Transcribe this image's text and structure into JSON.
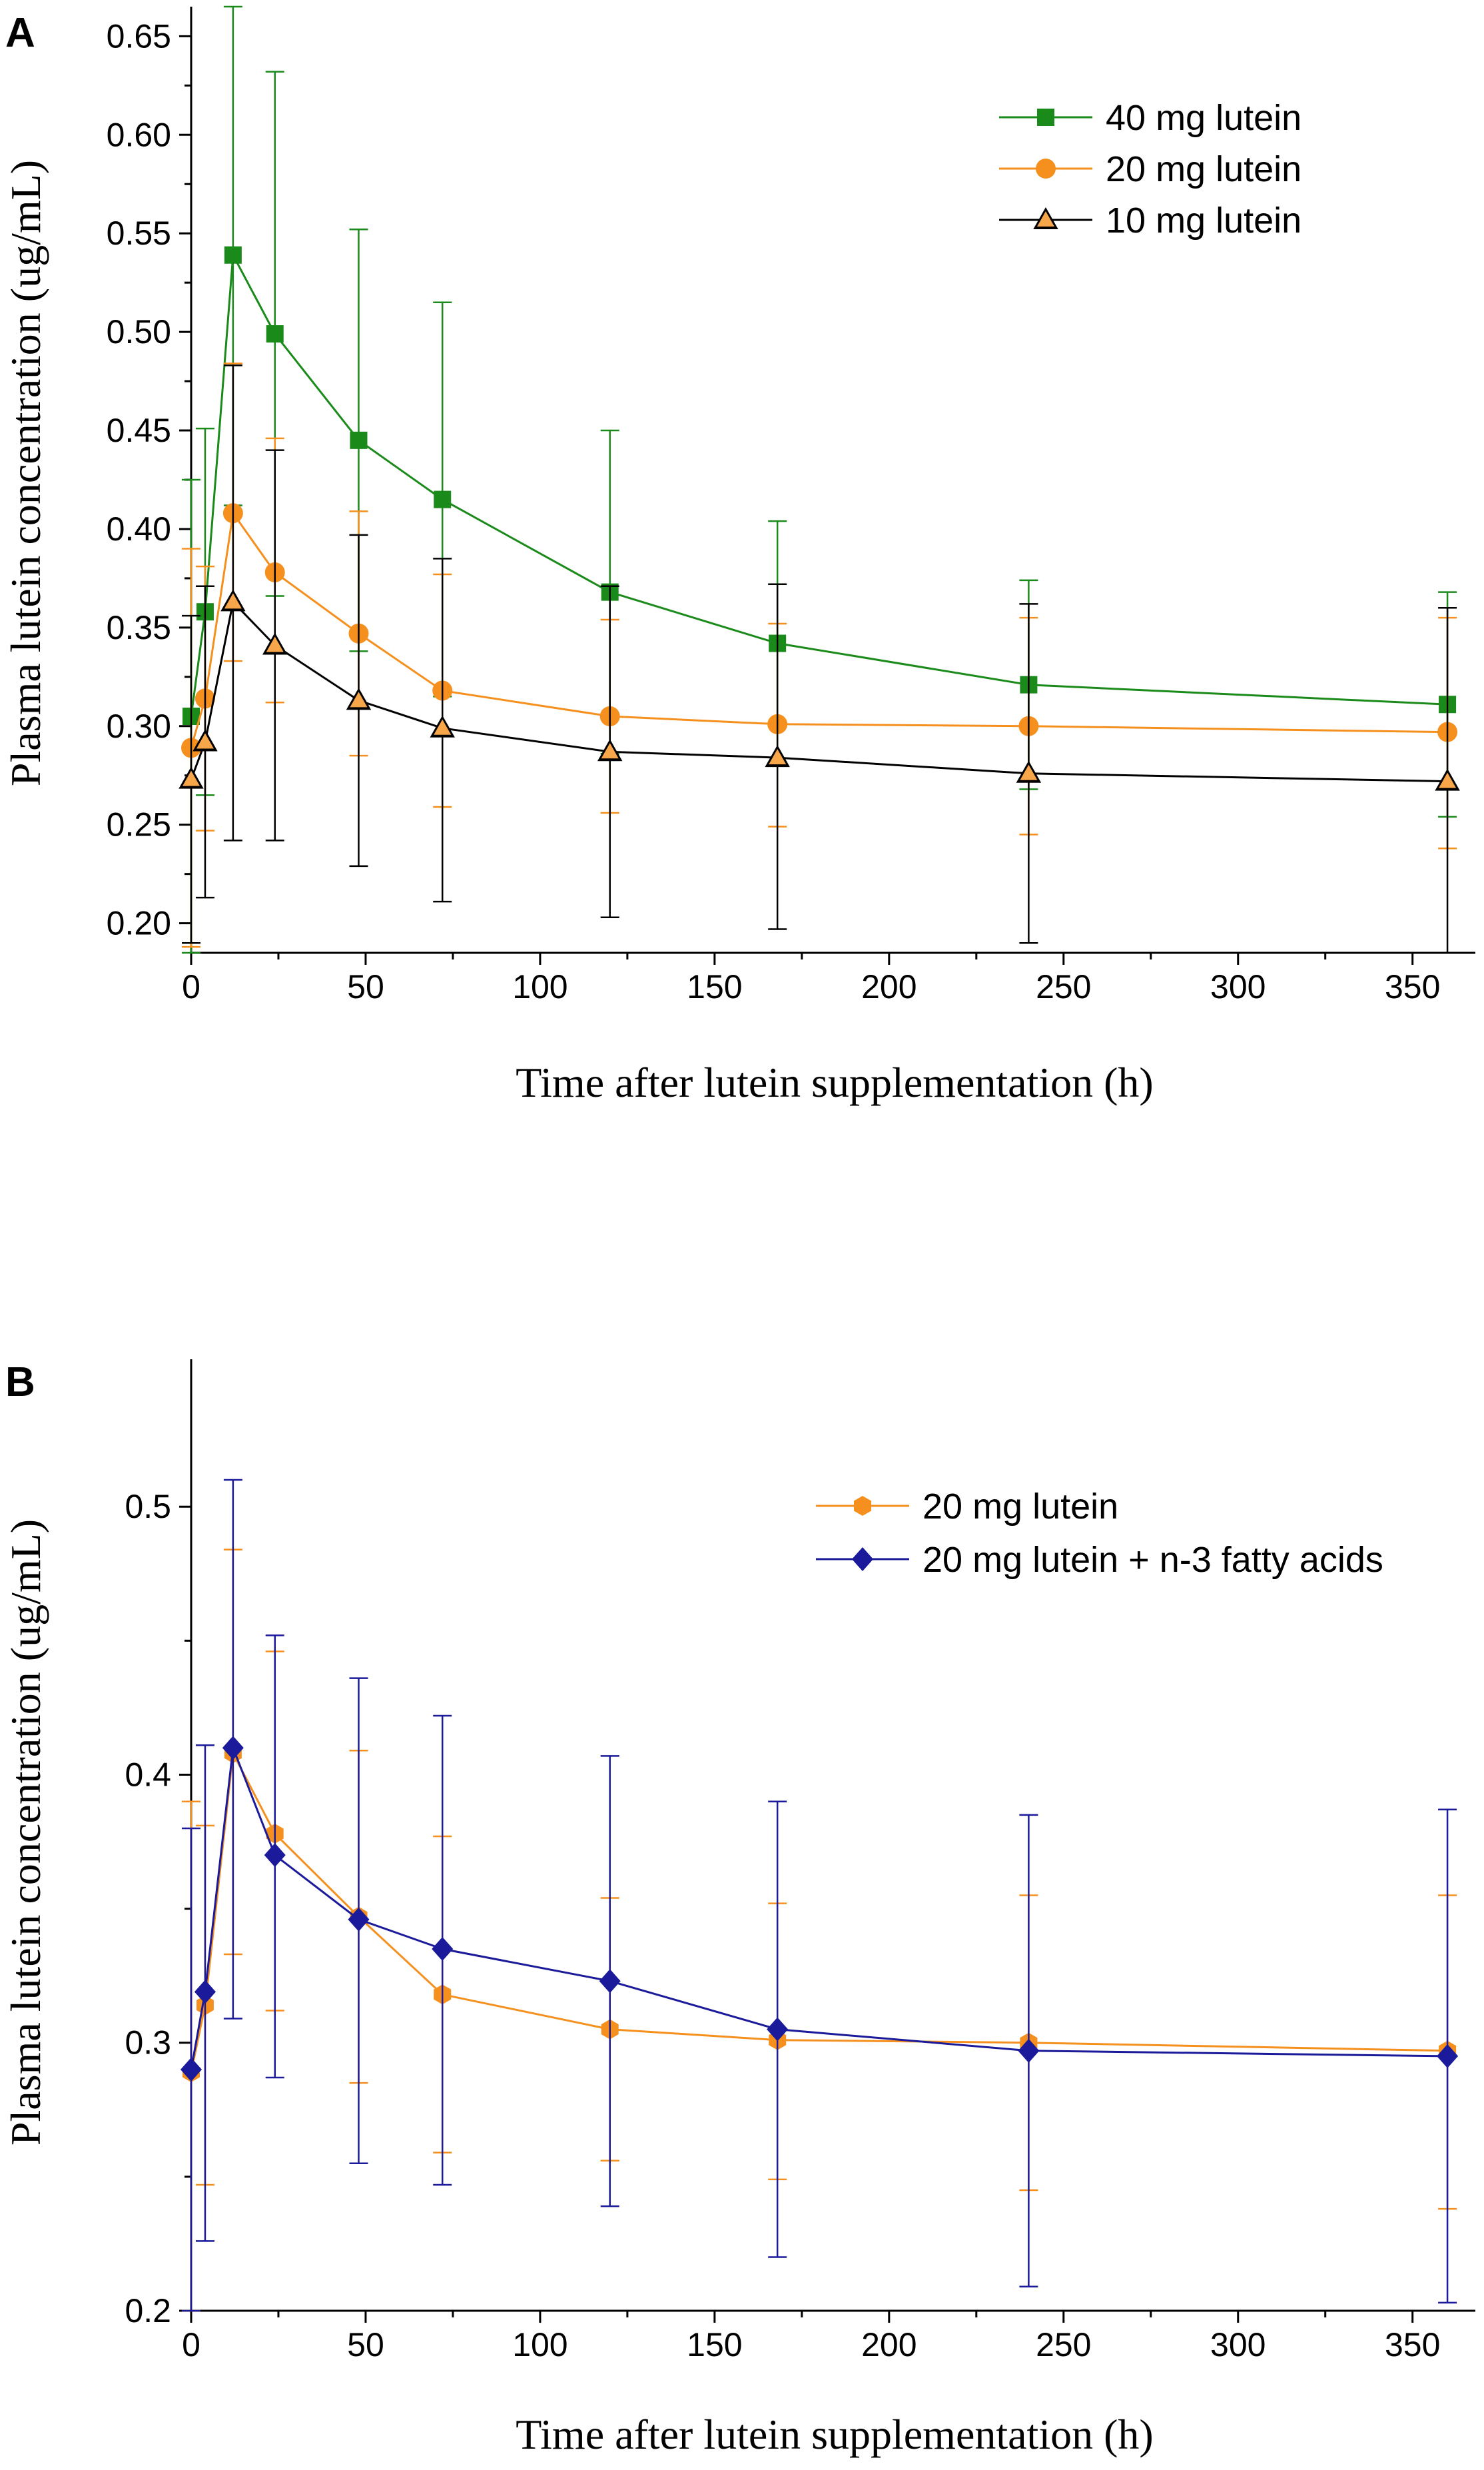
{
  "chart_data": [
    {
      "panel": "A",
      "type": "line",
      "title": "",
      "xlabel": "Time after lutein supplementation (h)",
      "ylabel": "Plasma lutein concentration (ug/mL)",
      "xlim": [
        0,
        368
      ],
      "ylim": [
        0.185,
        0.665
      ],
      "xticks": [
        0,
        50,
        100,
        150,
        200,
        250,
        300,
        350
      ],
      "xtick_labels": [
        "0",
        "50",
        "100",
        "150",
        "200",
        "250",
        "300",
        "350"
      ],
      "yticks": [
        0.2,
        0.25,
        0.3,
        0.35,
        0.4,
        0.45,
        0.5,
        0.55,
        0.6,
        0.65
      ],
      "ytick_labels": [
        "0.20",
        "0.25",
        "0.30",
        "0.35",
        "0.40",
        "0.45",
        "0.50",
        "0.55",
        "0.60",
        "0.65"
      ],
      "legend_position": "top-right",
      "x": [
        0,
        4,
        12,
        24,
        48,
        72,
        120,
        168,
        240,
        360
      ],
      "series": [
        {
          "name": "40 mg lutein",
          "color": "#1a8a1a",
          "marker": "square",
          "values": [
            0.305,
            0.358,
            0.539,
            0.499,
            0.445,
            0.415,
            0.368,
            0.342,
            0.321,
            0.311
          ],
          "err_low": [
            0.185,
            0.265,
            0.412,
            0.366,
            0.338,
            0.315,
            0.286,
            0.28,
            0.268,
            0.254
          ],
          "err_high": [
            0.425,
            0.451,
            0.666,
            0.632,
            0.552,
            0.515,
            0.45,
            0.404,
            0.374,
            0.368
          ]
        },
        {
          "name": "20 mg lutein",
          "color": "#f5901e",
          "marker": "circle",
          "values": [
            0.289,
            0.314,
            0.408,
            0.378,
            0.347,
            0.318,
            0.305,
            0.301,
            0.3,
            0.297
          ],
          "err_low": [
            0.188,
            0.247,
            0.333,
            0.312,
            0.285,
            0.259,
            0.256,
            0.249,
            0.245,
            0.238
          ],
          "err_high": [
            0.39,
            0.381,
            0.484,
            0.446,
            0.409,
            0.377,
            0.354,
            0.352,
            0.355,
            0.355
          ]
        },
        {
          "name": "10 mg lutein",
          "color": "#000000",
          "marker": "triangle",
          "values": [
            0.273,
            0.292,
            0.363,
            0.341,
            0.313,
            0.299,
            0.287,
            0.284,
            0.276,
            0.272
          ],
          "err_low": [
            0.19,
            0.213,
            0.242,
            0.242,
            0.229,
            0.211,
            0.203,
            0.197,
            0.19,
            0.185
          ],
          "err_high": [
            0.356,
            0.371,
            0.483,
            0.44,
            0.397,
            0.385,
            0.371,
            0.372,
            0.362,
            0.36
          ]
        }
      ]
    },
    {
      "panel": "B",
      "type": "line",
      "title": "",
      "xlabel": "Time after lutein supplementation (h)",
      "ylabel": "Plasma lutein concentration (ug/mL)",
      "xlim": [
        0,
        368
      ],
      "ylim": [
        0.2,
        0.555
      ],
      "xticks": [
        0,
        50,
        100,
        150,
        200,
        250,
        300,
        350
      ],
      "xtick_labels": [
        "0",
        "50",
        "100",
        "150",
        "200",
        "250",
        "300",
        "350"
      ],
      "yticks": [
        0.2,
        0.3,
        0.4,
        0.5
      ],
      "ytick_labels": [
        "0.2",
        "0.3",
        "0.4",
        "0.5"
      ],
      "legend_position": "top-right",
      "x": [
        0,
        4,
        12,
        24,
        48,
        72,
        120,
        168,
        240,
        360
      ],
      "series": [
        {
          "name": "20 mg lutein",
          "color": "#f5901e",
          "marker": "hexagon",
          "values": [
            0.289,
            0.314,
            0.408,
            0.378,
            0.347,
            0.318,
            0.305,
            0.301,
            0.3,
            0.297
          ],
          "err_low": [
            0.188,
            0.247,
            0.333,
            0.312,
            0.285,
            0.259,
            0.256,
            0.249,
            0.245,
            0.238
          ],
          "err_high": [
            0.39,
            0.381,
            0.484,
            0.446,
            0.409,
            0.377,
            0.354,
            0.352,
            0.355,
            0.355
          ]
        },
        {
          "name": "20 mg lutein + n-3 fatty acids",
          "color": "#1a1a9a",
          "marker": "diamond",
          "values": [
            0.29,
            0.319,
            0.41,
            0.37,
            0.346,
            0.335,
            0.323,
            0.305,
            0.297,
            0.295
          ],
          "err_low": [
            0.2,
            0.226,
            0.309,
            0.287,
            0.255,
            0.247,
            0.239,
            0.22,
            0.209,
            0.203
          ],
          "err_high": [
            0.38,
            0.411,
            0.51,
            0.452,
            0.436,
            0.422,
            0.407,
            0.39,
            0.385,
            0.387
          ]
        }
      ]
    }
  ]
}
